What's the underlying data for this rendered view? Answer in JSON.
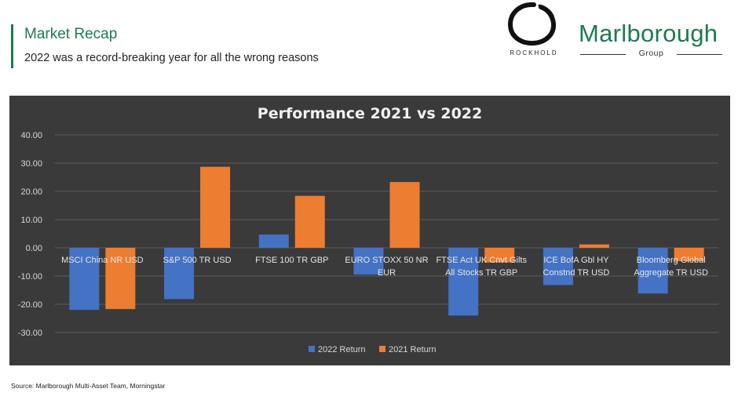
{
  "header": {
    "title": "Market Recap",
    "subtitle": "2022 was a record-breaking year for all the wrong reasons"
  },
  "logos": {
    "rockhold": "ROCKHOLD",
    "marlborough": "Marlborough",
    "marlborough_group": "Group"
  },
  "colors": {
    "brand_green": "#1e7a4e",
    "series_2022": "#4472c4",
    "series_2021": "#ed7d31",
    "chart_background": "#3a3a3a"
  },
  "chart_data": {
    "type": "bar",
    "title": "Performance 2021 vs 2022",
    "xlabel": "",
    "ylabel": "",
    "ylim": [
      -30,
      40
    ],
    "yticks": [
      "40.00",
      "30.00",
      "20.00",
      "10.00",
      "0.00",
      "-10.00",
      "-20.00",
      "-30.00"
    ],
    "categories": [
      [
        "MSCI China NR USD"
      ],
      [
        "S&P 500 TR USD"
      ],
      [
        "FTSE 100 TR GBP"
      ],
      [
        "EURO STOXX 50 NR",
        "EUR"
      ],
      [
        "FTSE Act UK Cnvt Gilts",
        "All Stocks TR GBP"
      ],
      [
        "ICE BofA Gbl HY",
        "Constnd TR USD"
      ],
      [
        "Bloomberg Global",
        "Aggregate TR USD"
      ]
    ],
    "series": [
      {
        "name": "2022 Return",
        "values": [
          -22.0,
          -18.2,
          4.7,
          -9.5,
          -24.0,
          -13.2,
          -16.2
        ]
      },
      {
        "name": "2021 Return",
        "values": [
          -21.7,
          28.7,
          18.4,
          23.3,
          -5.2,
          1.2,
          -4.7
        ]
      }
    ],
    "grid": true,
    "legend_position": "bottom-center"
  },
  "footer": {
    "source": "Source: Marlborough Multi-Asset Team, Morningstar"
  }
}
